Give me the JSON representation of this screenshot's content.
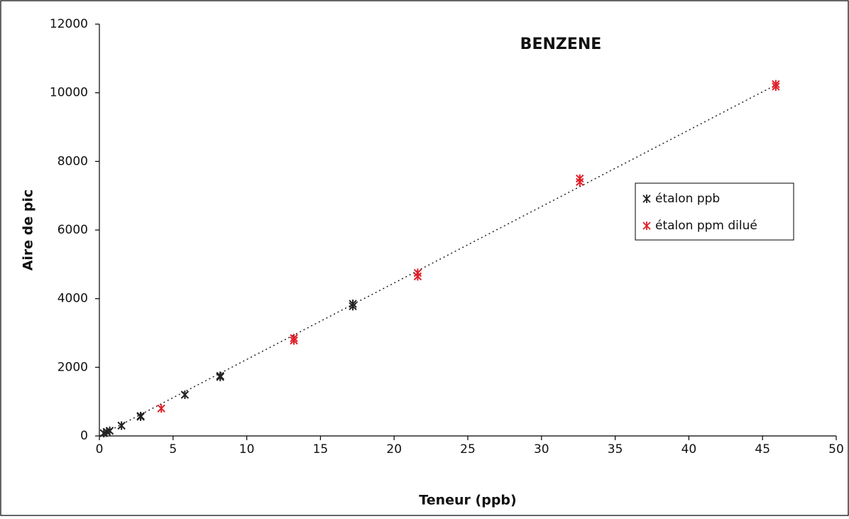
{
  "chart_data": {
    "type": "scatter",
    "title": "BENZENE",
    "x_label": "Teneur (ppb)",
    "y_label": "Aire de pic",
    "xlim": [
      0,
      50
    ],
    "xticks": [
      0,
      5,
      10,
      15,
      20,
      25,
      30,
      35,
      40,
      45,
      50
    ],
    "ylim": [
      0,
      12000
    ],
    "yticks": [
      0,
      2000,
      4000,
      6000,
      8000,
      10000,
      12000
    ],
    "legend": "right",
    "series": [
      {
        "name": "étalon ppb",
        "color": "#222222",
        "x": [
          0.3,
          0.5,
          0.7,
          1.5,
          2.8,
          2.8,
          5.8,
          8.2,
          8.2,
          17.2,
          17.2
        ],
        "values": [
          80,
          120,
          150,
          300,
          580,
          560,
          1200,
          1750,
          1720,
          3850,
          3780
        ]
      },
      {
        "name": "étalon ppm dilué",
        "color": "#e0202a",
        "x": [
          4.2,
          13.2,
          13.2,
          21.6,
          21.6,
          32.6,
          32.6,
          45.9,
          45.9
        ],
        "values": [
          800,
          2850,
          2780,
          4750,
          4650,
          7500,
          7400,
          10250,
          10180
        ]
      }
    ],
    "trendline": {
      "x": [
        0,
        46
      ],
      "values": [
        0,
        10250
      ]
    }
  }
}
